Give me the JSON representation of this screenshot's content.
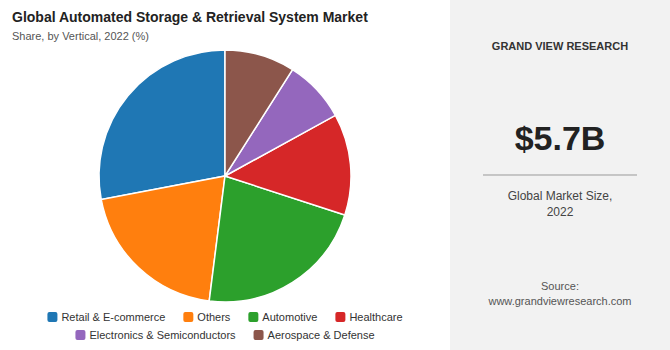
{
  "chart_data": {
    "type": "pie",
    "title": "Global Automated Storage & Retrieval System Market",
    "subtitle": "Share, by Vertical, 2022 (%)",
    "categories": [
      "Retail & E-commerce",
      "Others",
      "Automotive",
      "Healthcare",
      "Electronics & Semiconductors",
      "Aerospace & Defense"
    ],
    "values": [
      28,
      20,
      22,
      13,
      8,
      9
    ],
    "legend": "bottom",
    "annotations": [
      "GRAND VIEW RESEARCH",
      "$5.7B",
      "Global Market Size,\n2022",
      "Source:\nwww.grandviewresearch.com"
    ]
  }
}
